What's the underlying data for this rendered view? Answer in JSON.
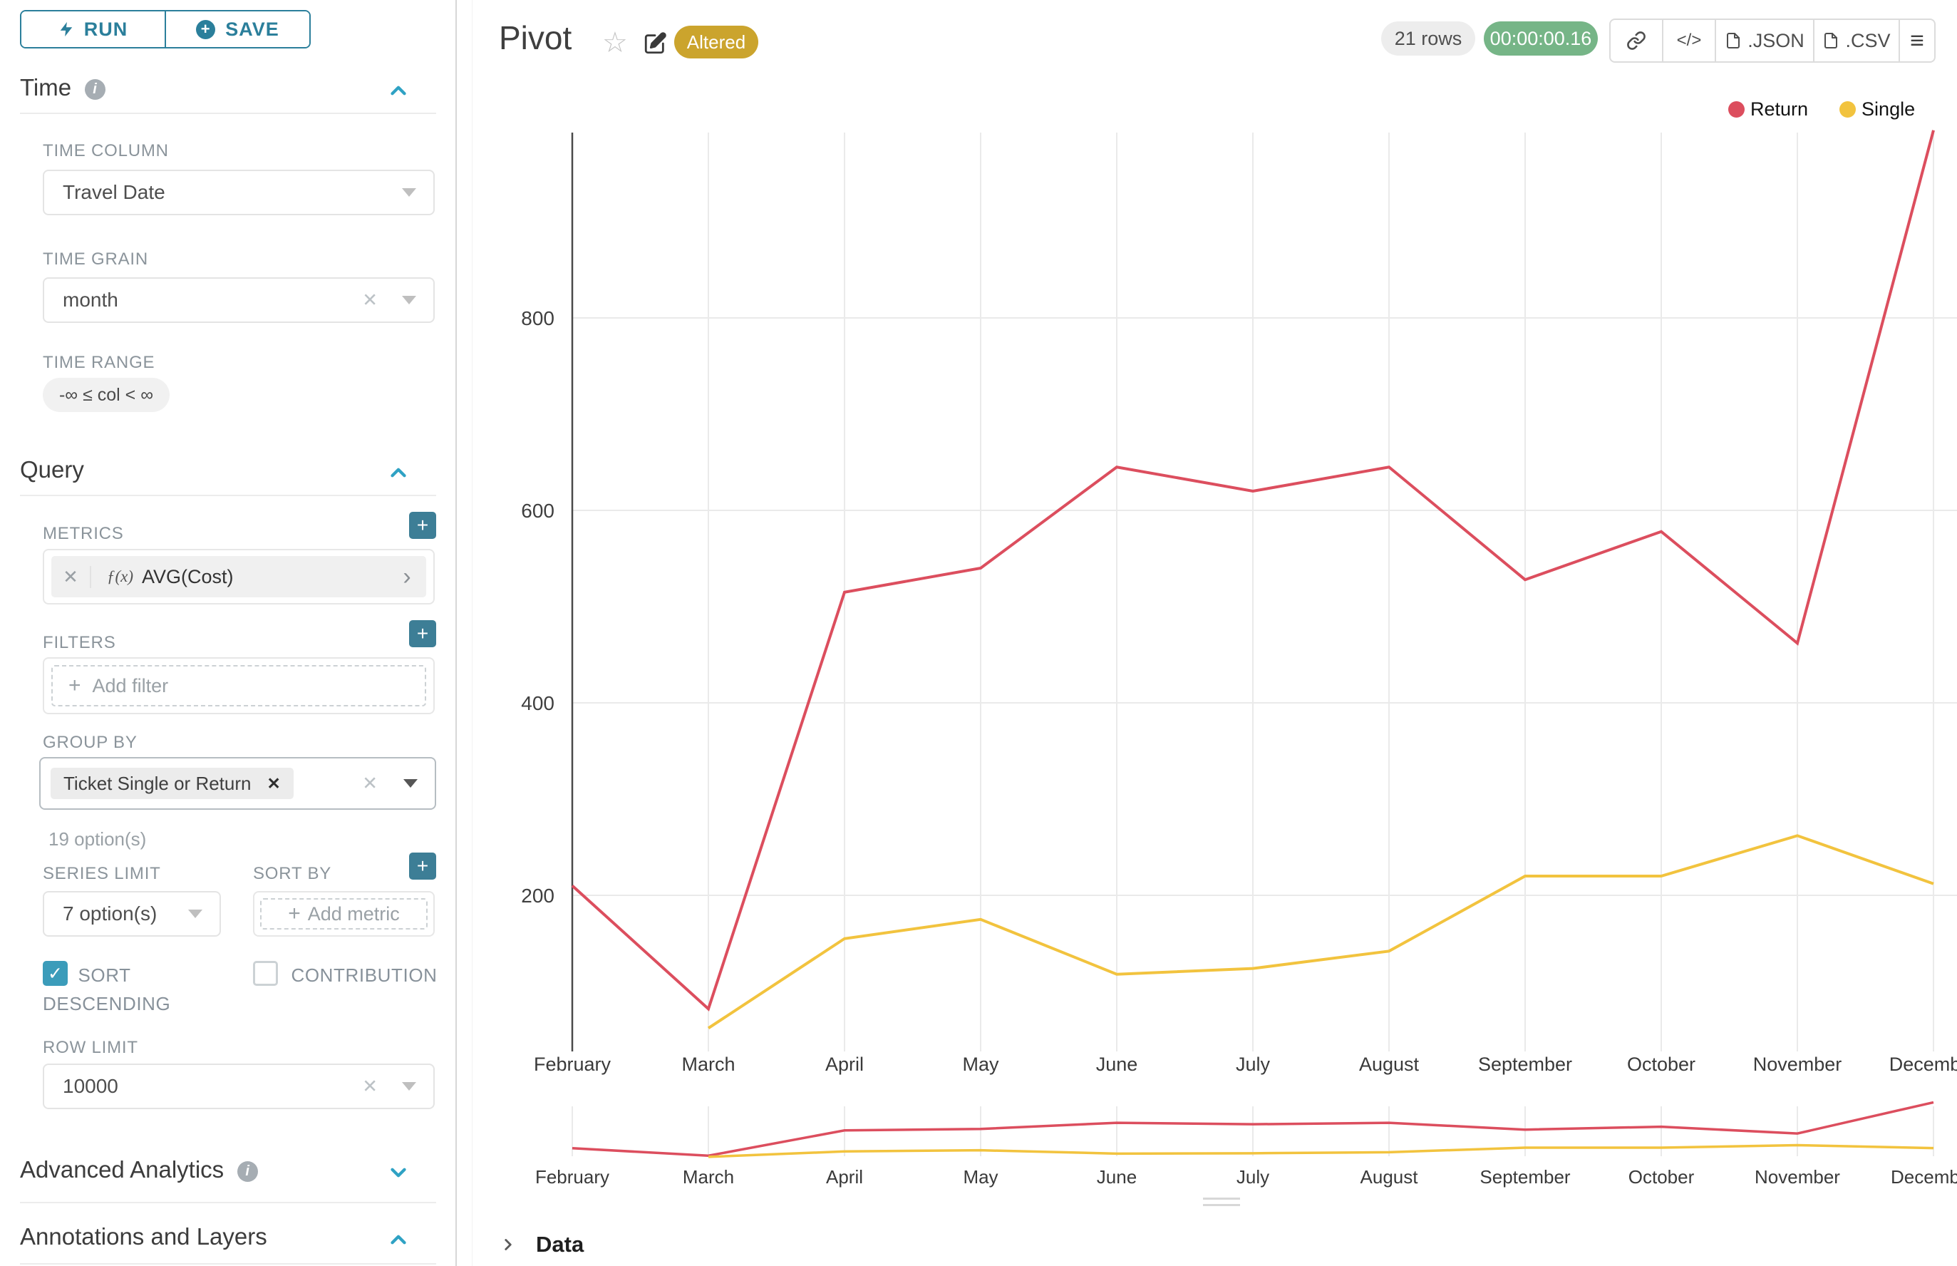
{
  "colors": {
    "accent_teal": "#2b7f9b",
    "section_chevron_teal": "#2fa2c4",
    "altered_badge_gold": "#cba42d",
    "timer_badge_green": "#76b587",
    "return_series_red": "#dc4e5e",
    "single_series_yellow": "#f2c33e"
  },
  "icons": {
    "close": "✕",
    "plus": "+",
    "chevron_right": "›",
    "star": "☆",
    "check": "✓",
    "menu": "≡",
    "code": "</>",
    "info": "i",
    "fx": "ƒ(x)"
  },
  "toolbar": {
    "run_label": "RUN",
    "save_label": "SAVE"
  },
  "time": {
    "title": "Time",
    "time_column_label": "TIME COLUMN",
    "time_column_value": "Travel Date",
    "time_grain_label": "TIME GRAIN",
    "time_grain_value": "month",
    "time_range_label": "TIME RANGE",
    "time_range_value": "-∞ ≤ col < ∞"
  },
  "query": {
    "title": "Query",
    "metrics_label": "METRICS",
    "metric_value": "AVG(Cost)",
    "filters_label": "FILTERS",
    "add_filter_label": "Add filter",
    "group_by_label": "GROUP BY",
    "group_by_value": "Ticket Single or Return",
    "group_by_hint": "19 option(s)",
    "series_limit_label": "SERIES LIMIT",
    "series_limit_value": "7 option(s)",
    "sort_by_label": "SORT BY",
    "add_metric_label": "Add metric",
    "sort_descending_label": "SORT DESCENDING",
    "contribution_label": "CONTRIBUTION",
    "row_limit_label": "ROW LIMIT",
    "row_limit_value": "10000"
  },
  "advanced_analytics": {
    "title": "Advanced Analytics"
  },
  "annotations": {
    "title": "Annotations and Layers"
  },
  "header": {
    "title": "Pivot",
    "altered_badge": "Altered",
    "row_count": "21 rows",
    "query_duration": "00:00:00.16",
    "export_json_label": ".JSON",
    "export_csv_label": ".CSV"
  },
  "data_panel": {
    "title": "Data"
  },
  "chart_data": {
    "type": "line",
    "title": "",
    "categories": [
      "February",
      "March",
      "April",
      "May",
      "June",
      "July",
      "August",
      "September",
      "October",
      "November",
      "December"
    ],
    "series": [
      {
        "name": "Return",
        "color": "#dc4e5e",
        "values": [
          210,
          82,
          515,
          540,
          645,
          620,
          645,
          528,
          578,
          462,
          995
        ]
      },
      {
        "name": "Single",
        "color": "#f2c33e",
        "values": [
          null,
          62,
          155,
          175,
          118,
          124,
          142,
          220,
          220,
          262,
          212
        ]
      }
    ],
    "xlabel": "",
    "ylabel": "",
    "yticks": [
      200,
      400,
      600,
      800
    ],
    "ylim": [
      0,
      1000
    ],
    "grid": true,
    "legend_position": "top-right",
    "has_mini_preview": true
  }
}
